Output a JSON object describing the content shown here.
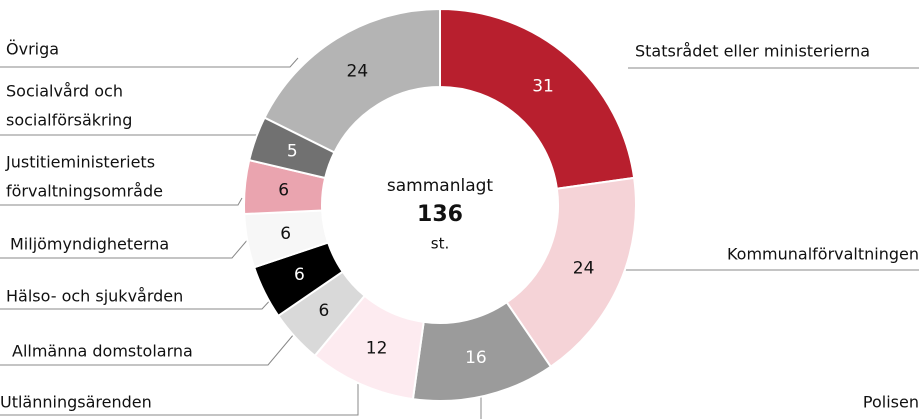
{
  "chart_data": {
    "type": "pie",
    "categories": [
      "Statsrådet eller ministerierna",
      "Kommunalförvaltningen",
      "Polisen",
      "Utlänningsärenden",
      "Allmänna domstolarna",
      "Hälso- och sjukvården",
      "Miljömyndigheterna",
      [
        "Justitieministeriets",
        "förvaltningsområde"
      ],
      [
        "Socialvård och",
        "socialförsäkring"
      ],
      "Övriga"
    ],
    "values": [
      31,
      24,
      16,
      12,
      6,
      6,
      6,
      6,
      5,
      24
    ],
    "colors": [
      "#b81f2e",
      "#f5d3d7",
      "#9b9b9b",
      "#fdebf0",
      "#d9d9d9",
      "#000000",
      "#f7f7f7",
      "#eaa4af",
      "#717171",
      "#b4b4b4"
    ],
    "center": {
      "label": "sammanlagt",
      "total": 136,
      "unit": "st."
    }
  }
}
